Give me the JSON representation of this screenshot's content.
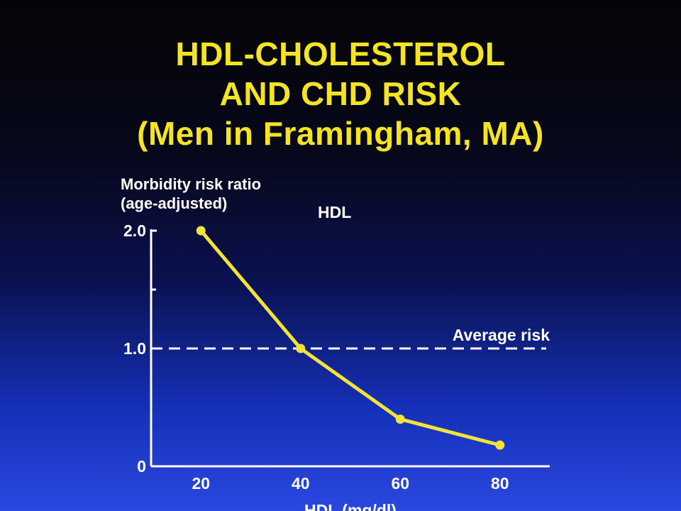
{
  "title_lines": [
    "HDL-CHOLESTEROL",
    "AND CHD RISK",
    "(Men in Framingham, MA)"
  ],
  "chart_data": {
    "type": "line",
    "title": "HDL-CHOLESTEROL AND CHD RISK (Men in Framingham, MA)",
    "ylabel_lines": [
      "Morbidity risk ratio",
      "(age-adjusted)"
    ],
    "xlabel": "HDL (mg/dl)",
    "xlim": [
      10,
      90
    ],
    "ylim": [
      0,
      2.0
    ],
    "x_ticks": [
      20,
      40,
      60,
      80
    ],
    "y_ticks": [
      {
        "value": 0,
        "label": "0"
      },
      {
        "value": 1.0,
        "label": "1.0"
      },
      {
        "value": 2.0,
        "label": "2.0"
      }
    ],
    "y_minor_ticks": [
      1.5
    ],
    "series": [
      {
        "name": "HDL",
        "x": [
          20,
          40,
          60,
          80
        ],
        "y": [
          2.0,
          1.0,
          0.4,
          0.18
        ],
        "color": "#f2e23a"
      }
    ],
    "reference_line": {
      "y": 1.0,
      "label": "Average risk",
      "style": "dashed",
      "color": "#ffffff"
    },
    "grid": false
  }
}
